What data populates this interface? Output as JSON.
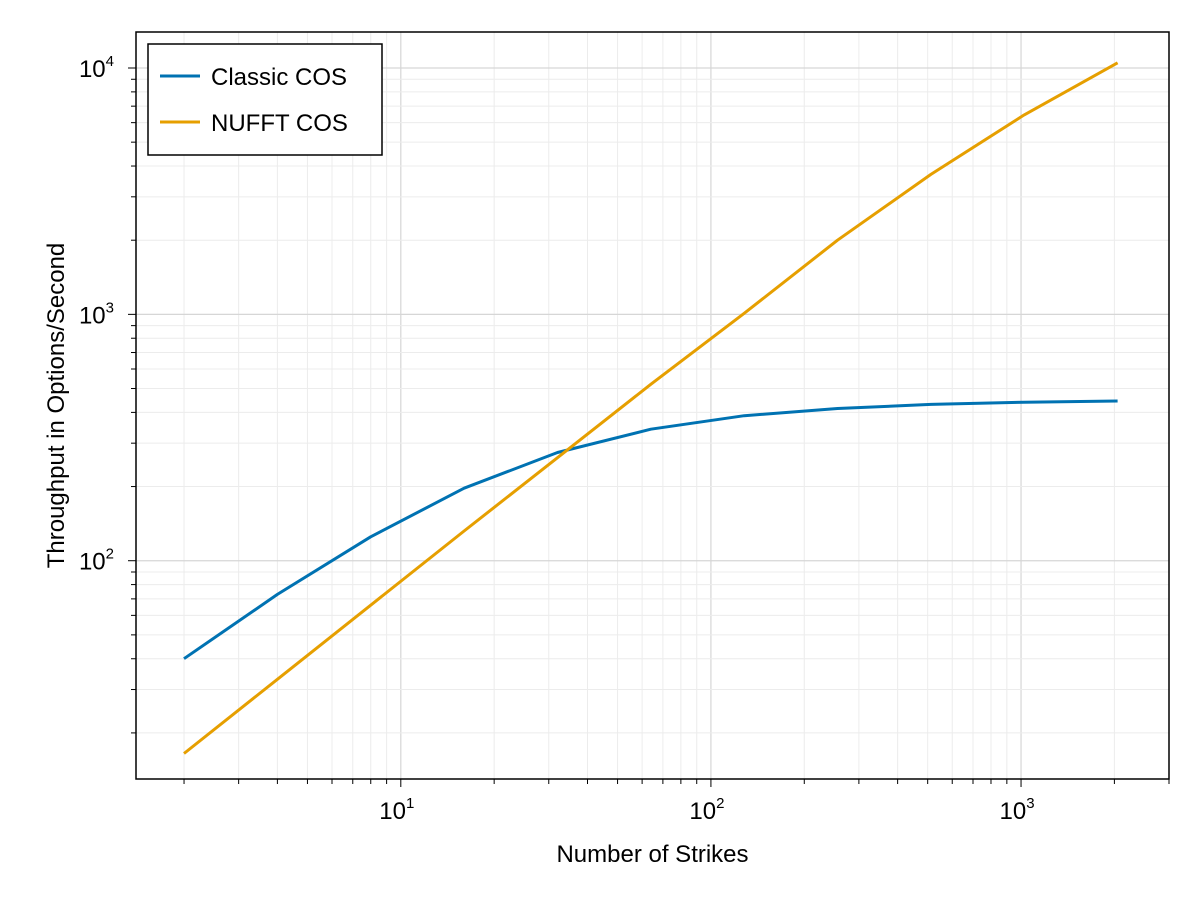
{
  "chart_data": {
    "type": "line",
    "title": "",
    "xlabel": "Number of Strikes",
    "ylabel": "Throughput in Options/Second",
    "xscale": "log",
    "yscale": "log",
    "xlim": [
      1.4,
      3000
    ],
    "ylim": [
      13,
      14000
    ],
    "grid": true,
    "legend_position": "top-left",
    "x_ticks": [
      {
        "base": "10",
        "exp": "1",
        "value": 10
      },
      {
        "base": "10",
        "exp": "2",
        "value": 100
      },
      {
        "base": "10",
        "exp": "3",
        "value": 1000
      }
    ],
    "y_ticks": [
      {
        "base": "10",
        "exp": "2",
        "value": 100
      },
      {
        "base": "10",
        "exp": "3",
        "value": 1000
      },
      {
        "base": "10",
        "exp": "4",
        "value": 10000
      }
    ],
    "x": [
      2,
      4,
      8,
      16,
      32,
      64,
      128,
      256,
      512,
      1024,
      2048
    ],
    "series": [
      {
        "name": "Classic COS",
        "color": "#0072b2",
        "values": [
          40,
          73,
          125,
          197,
          275,
          342,
          388,
          415,
          431,
          440,
          445
        ]
      },
      {
        "name": "NUFFT COS",
        "color": "#e69f00",
        "values": [
          16.5,
          33,
          66,
          132,
          262,
          520,
          1010,
          2000,
          3700,
          6450,
          10500
        ]
      }
    ]
  }
}
